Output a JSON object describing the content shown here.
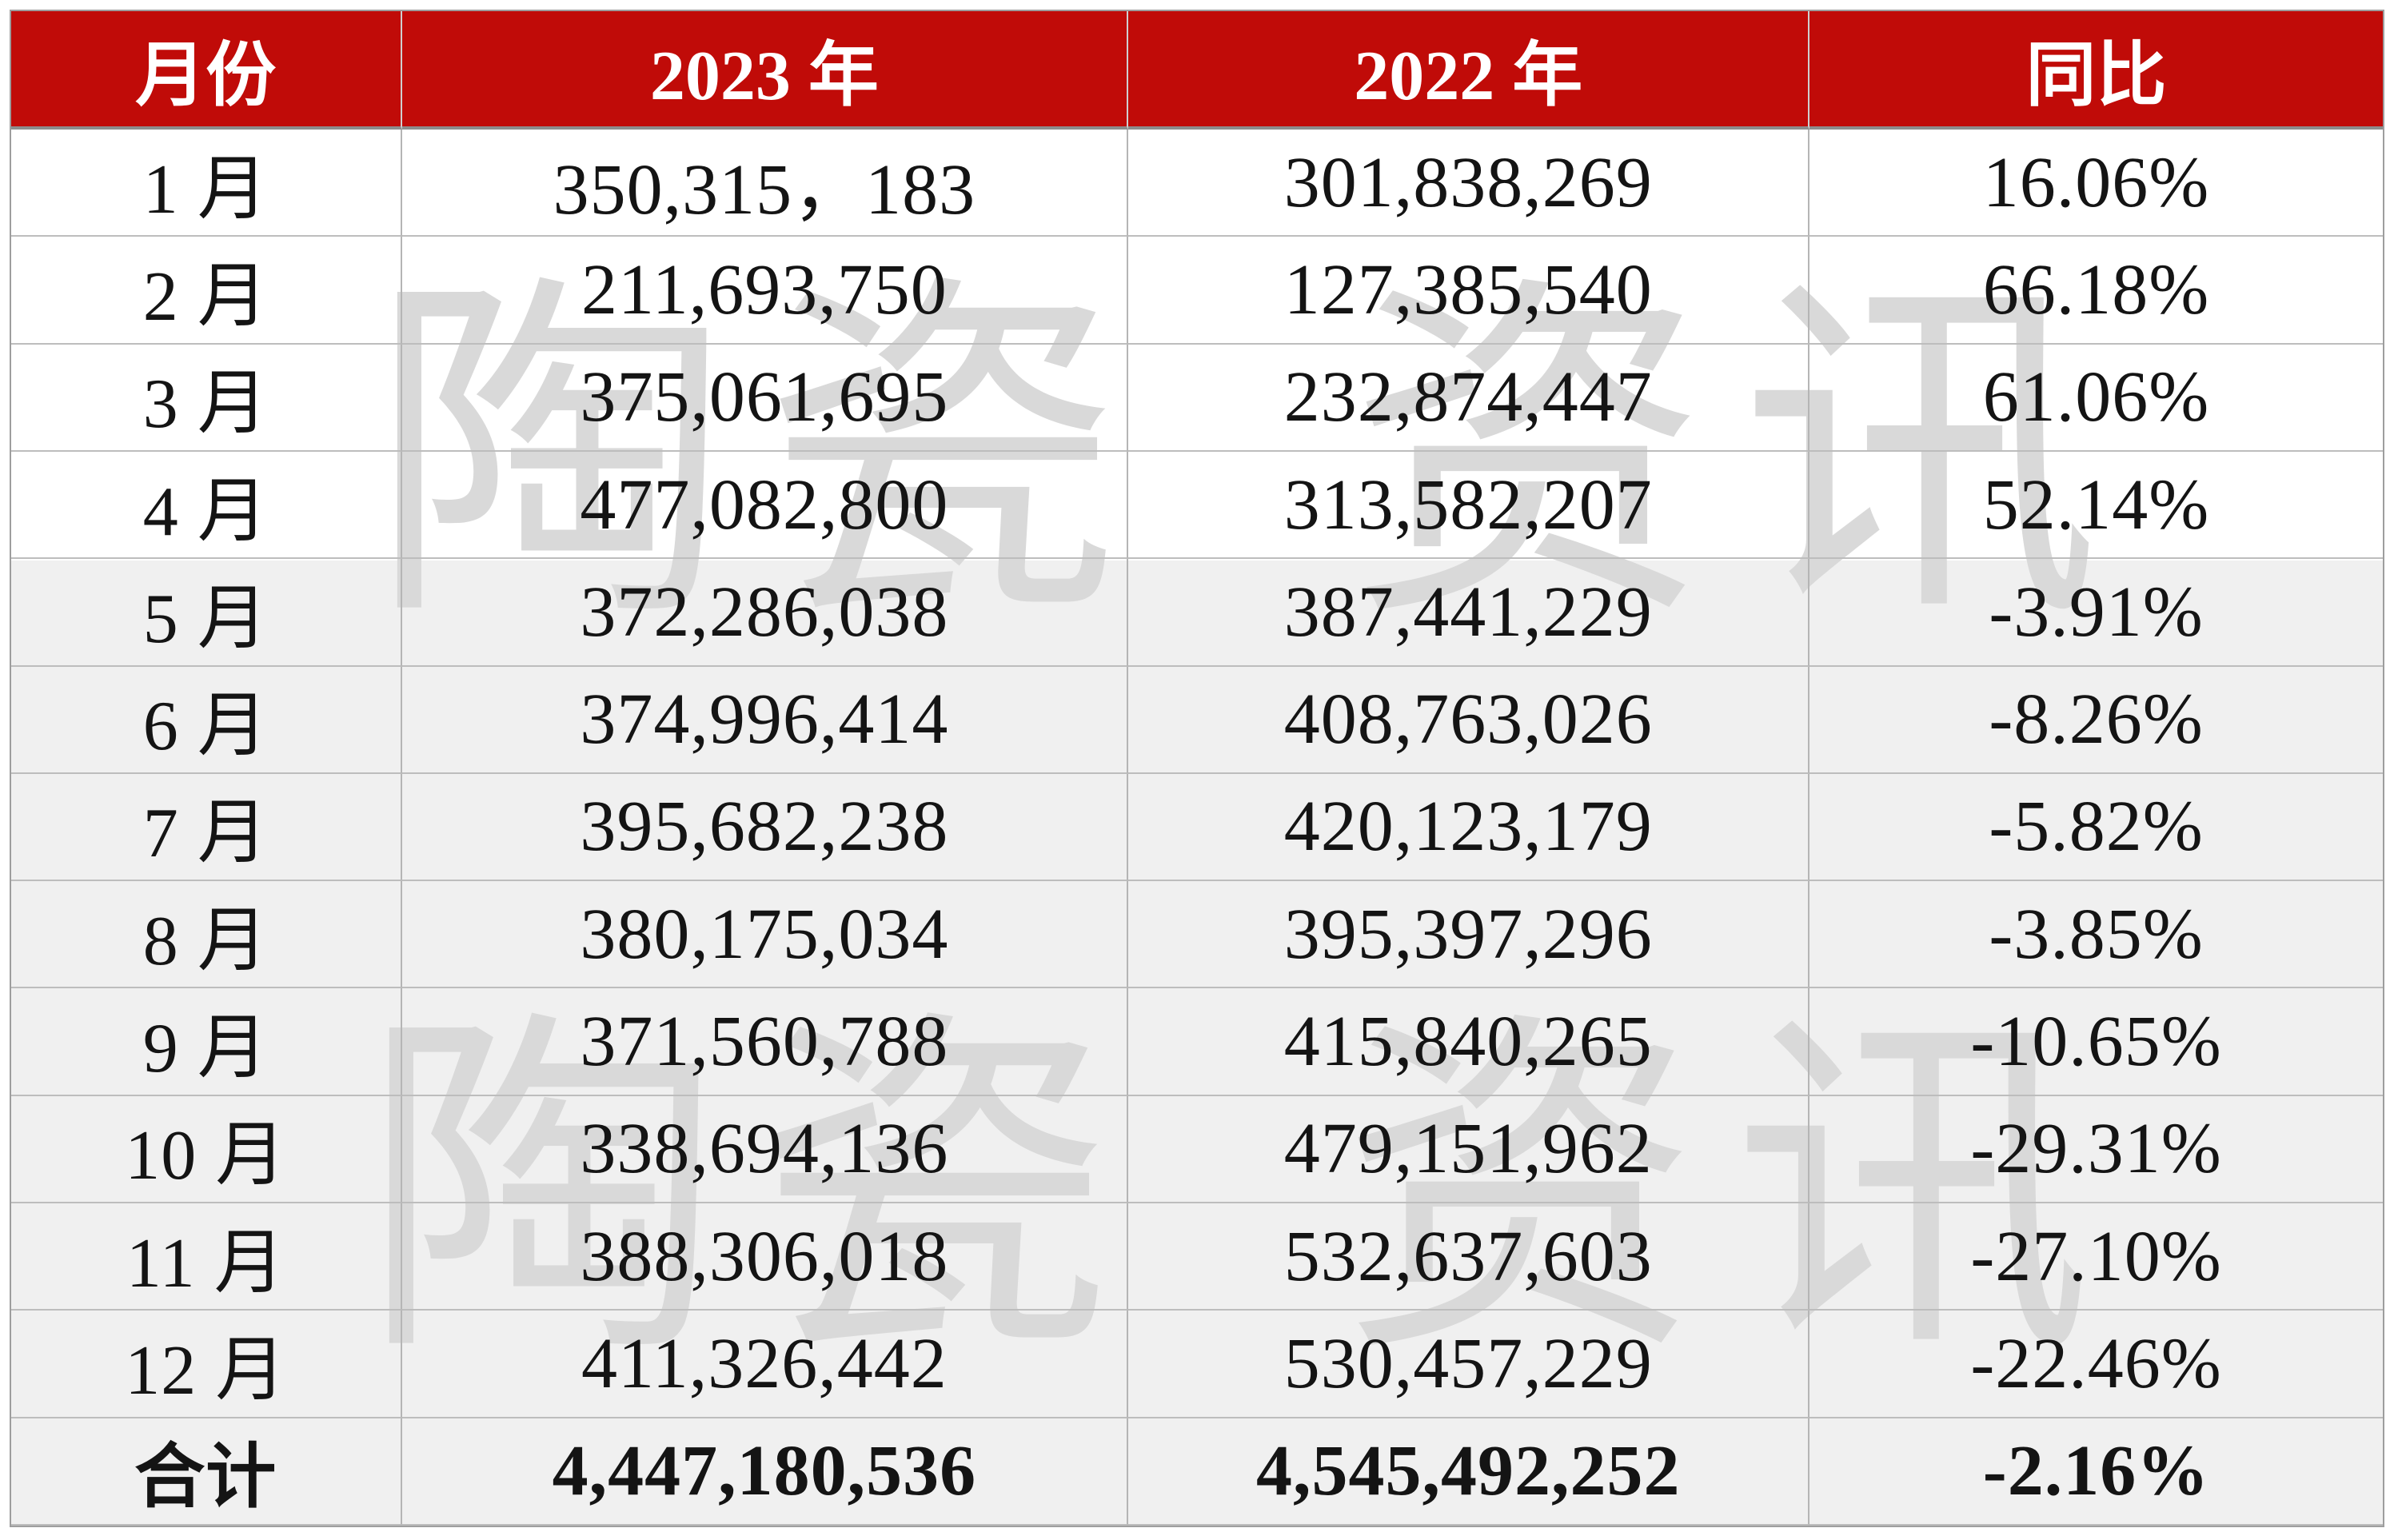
{
  "chart_data": {
    "type": "table",
    "columns": [
      "月份",
      "2023 年",
      "2022 年",
      "同比"
    ],
    "categories": [
      "1 月",
      "2 月",
      "3 月",
      "4 月",
      "5 月",
      "6 月",
      "7 月",
      "8 月",
      "9 月",
      "10 月",
      "11 月",
      "12 月",
      "合计"
    ],
    "series": [
      {
        "name": "2023 年",
        "values": [
          "350,315，183",
          "211,693,750",
          "375,061,695",
          "477,082,800",
          "372,286,038",
          "374,996,414",
          "395,682,238",
          "380,175,034",
          "371,560,788",
          "338,694,136",
          "388,306,018",
          "411,326,442",
          "4,447,180,536"
        ]
      },
      {
        "name": "2022 年",
        "values": [
          "301,838,269",
          "127,385,540",
          "232,874,447",
          "313,582,207",
          "387,441,229",
          "408,763,026",
          "420,123,179",
          "395,397,296",
          "415,840,265",
          "479,151,962",
          "532,637,603",
          "530,457,229",
          "4,545,492,252"
        ]
      },
      {
        "name": "同比",
        "values": [
          "16.06%",
          "66.18%",
          "61.06%",
          "52.14%",
          "-3.91%",
          "-8.26%",
          "-5.82%",
          "-3.85%",
          "-10.65%",
          "-29.31%",
          "-27.10%",
          "-22.46%",
          "-2.16%"
        ]
      }
    ],
    "total_row_label": "合计",
    "layout": {
      "grid": "on",
      "header_position": "top"
    }
  },
  "watermark": {
    "text": "陶瓷 资讯"
  },
  "colors": {
    "header_bg": "#C00B08",
    "header_text": "#FFFFFF",
    "row_bg_white": "#FFFFFF",
    "row_bg_gray": "#F0F0F0",
    "grid_line": "#B5B5B5",
    "body_text": "#141414",
    "watermark_gray": "#D9D9D9"
  }
}
